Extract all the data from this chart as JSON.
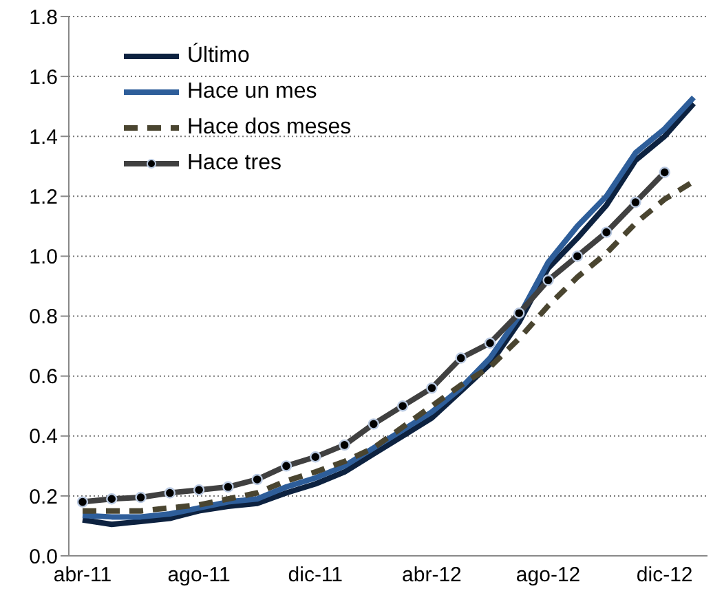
{
  "chart_data": {
    "type": "line",
    "categories": [
      "abr-11",
      null,
      null,
      null,
      "ago-11",
      null,
      null,
      null,
      "dic-11",
      null,
      null,
      null,
      "abr-12",
      null,
      null,
      null,
      "ago-12",
      null,
      null,
      null,
      "dic-12",
      null
    ],
    "series": [
      {
        "name": "Último",
        "color": "#0d2240",
        "line_style": "solid",
        "marker": "none",
        "values": [
          0.12,
          0.105,
          0.115,
          0.125,
          0.15,
          0.165,
          0.175,
          0.21,
          0.24,
          0.28,
          0.34,
          0.4,
          0.46,
          0.55,
          0.64,
          0.78,
          0.96,
          1.06,
          1.17,
          1.32,
          1.4,
          1.51
        ]
      },
      {
        "name": "Hace un mes",
        "color": "#2e5e9a",
        "line_style": "solid",
        "marker": "none",
        "values": [
          0.135,
          0.13,
          0.13,
          0.14,
          0.16,
          0.18,
          0.19,
          0.23,
          0.26,
          0.3,
          0.36,
          0.42,
          0.48,
          0.56,
          0.66,
          0.8,
          0.98,
          1.1,
          1.2,
          1.345,
          1.425,
          1.53
        ]
      },
      {
        "name": "Hace dos meses",
        "color": "#4a4530",
        "line_style": "dashed",
        "marker": "none",
        "values": [
          0.15,
          0.15,
          0.15,
          0.16,
          0.17,
          0.19,
          0.21,
          0.25,
          0.28,
          0.315,
          0.36,
          0.43,
          0.5,
          0.57,
          0.63,
          0.725,
          0.835,
          0.93,
          1.01,
          1.11,
          1.19,
          1.25
        ]
      },
      {
        "name": "Hace tres",
        "color": "#404040",
        "line_style": "solid",
        "marker": "circle",
        "values": [
          0.18,
          0.19,
          0.195,
          0.21,
          0.22,
          0.23,
          0.255,
          0.3,
          0.33,
          0.37,
          0.44,
          0.5,
          0.56,
          0.66,
          0.71,
          0.81,
          0.92,
          1.0,
          1.08,
          1.18,
          1.28,
          null
        ]
      }
    ],
    "ylim": [
      0,
      1.8
    ],
    "yticks": [
      {
        "value": 0,
        "label": "0.0"
      },
      0.2,
      0.4,
      0.6,
      0.8,
      {
        "value": 1,
        "label": "1.0"
      },
      1.2,
      1.4,
      1.6,
      1.8
    ],
    "grid": "y",
    "legend": "top left"
  }
}
